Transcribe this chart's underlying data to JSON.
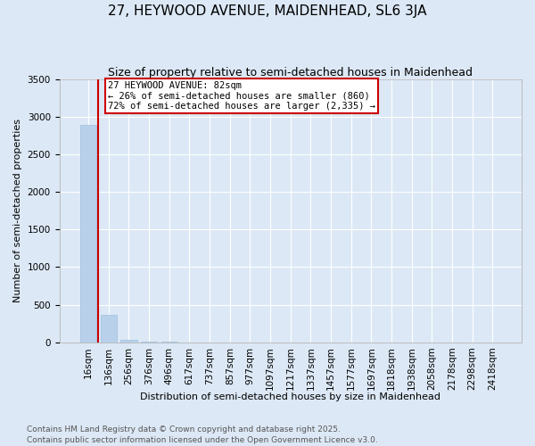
{
  "title": "27, HEYWOOD AVENUE, MAIDENHEAD, SL6 3JA",
  "subtitle": "Size of property relative to semi-detached houses in Maidenhead",
  "xlabel": "Distribution of semi-detached houses by size in Maidenhead",
  "ylabel": "Number of semi-detached properties",
  "categories": [
    "16sqm",
    "136sqm",
    "256sqm",
    "376sqm",
    "496sqm",
    "617sqm",
    "737sqm",
    "857sqm",
    "977sqm",
    "1097sqm",
    "1217sqm",
    "1337sqm",
    "1457sqm",
    "1577sqm",
    "1697sqm",
    "1818sqm",
    "1938sqm",
    "2058sqm",
    "2178sqm",
    "2298sqm",
    "2418sqm"
  ],
  "values": [
    2890,
    360,
    30,
    5,
    2,
    1,
    0,
    0,
    0,
    0,
    0,
    0,
    0,
    0,
    0,
    0,
    0,
    0,
    0,
    0,
    0
  ],
  "bar_color": "#b8d0ea",
  "bar_edge_color": "#9dbfdf",
  "background_color": "#dce8f5",
  "grid_color": "#ffffff",
  "annotation_text": "27 HEYWOOD AVENUE: 82sqm\n← 26% of semi-detached houses are smaller (860)\n72% of semi-detached houses are larger (2,335) →",
  "annotation_box_color": "#ffffff",
  "annotation_border_color": "#cc0000",
  "vline_color": "#cc0000",
  "vline_x": 0.5,
  "ylim": [
    0,
    3500
  ],
  "yticks": [
    0,
    500,
    1000,
    1500,
    2000,
    2500,
    3000,
    3500
  ],
  "footer": "Contains HM Land Registry data © Crown copyright and database right 2025.\nContains public sector information licensed under the Open Government Licence v3.0.",
  "title_fontsize": 11,
  "subtitle_fontsize": 9,
  "axis_label_fontsize": 8,
  "tick_fontsize": 7.5,
  "footer_fontsize": 6.5
}
